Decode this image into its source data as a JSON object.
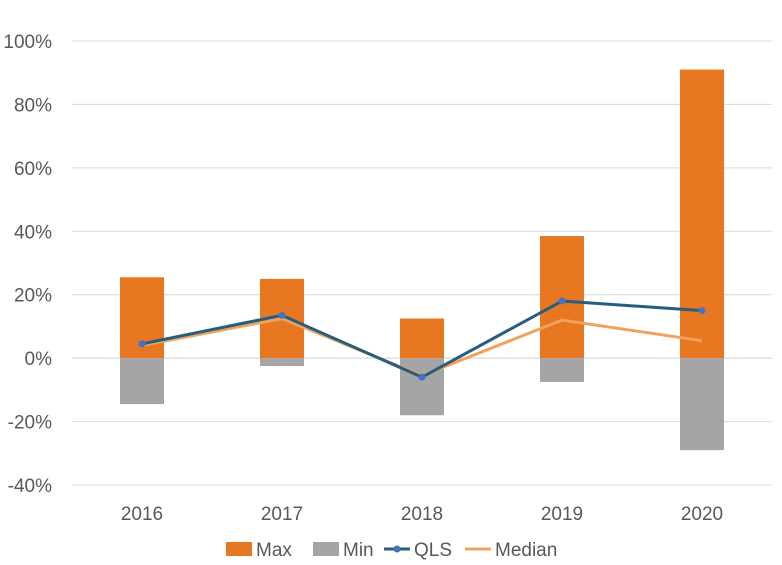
{
  "chart_data": {
    "type": "bar",
    "categories": [
      "2016",
      "2017",
      "2018",
      "2019",
      "2020"
    ],
    "series": [
      {
        "name": "Max",
        "kind": "bar",
        "color": "#E87722",
        "values": [
          25.5,
          25.0,
          12.5,
          38.5,
          91.0
        ]
      },
      {
        "name": "Min",
        "kind": "bar",
        "color": "#A5A5A5",
        "values": [
          -14.5,
          -2.5,
          -18.0,
          -7.5,
          -29.0
        ]
      },
      {
        "name": "QLS",
        "kind": "line",
        "marker": "circle",
        "color": "#255E7E",
        "values": [
          4.5,
          13.5,
          -6.0,
          18.0,
          15.0
        ]
      },
      {
        "name": "Median",
        "kind": "line",
        "marker": "none",
        "color": "#F0A35E",
        "values": [
          4.0,
          12.5,
          -5.5,
          12.0,
          5.5
        ]
      }
    ],
    "ylim": [
      -40,
      100
    ],
    "yticks": [
      -40,
      -20,
      0,
      20,
      40,
      60,
      80,
      100
    ],
    "ytick_labels": [
      "-40%",
      "-20%",
      "0%",
      "20%",
      "40%",
      "60%",
      "80%",
      "100%"
    ],
    "grid": true,
    "legend_position": "bottom"
  }
}
